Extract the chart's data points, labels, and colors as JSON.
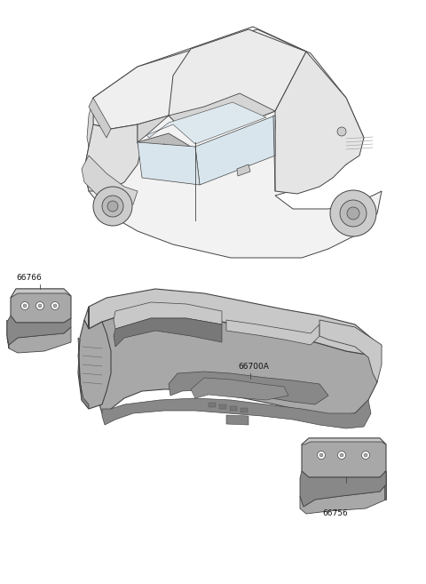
{
  "background_color": "#ffffff",
  "line_color": "#444444",
  "label_color": "#111111",
  "label_fontsize": 6.5,
  "fig_width": 4.8,
  "fig_height": 6.57,
  "dpi": 100,
  "car_fill": "#f5f5f5",
  "car_shadow": "#d8d8d8",
  "part_light": "#c8c8c8",
  "part_mid": "#a8a8a8",
  "part_dark": "#888888",
  "part_darker": "#686868"
}
